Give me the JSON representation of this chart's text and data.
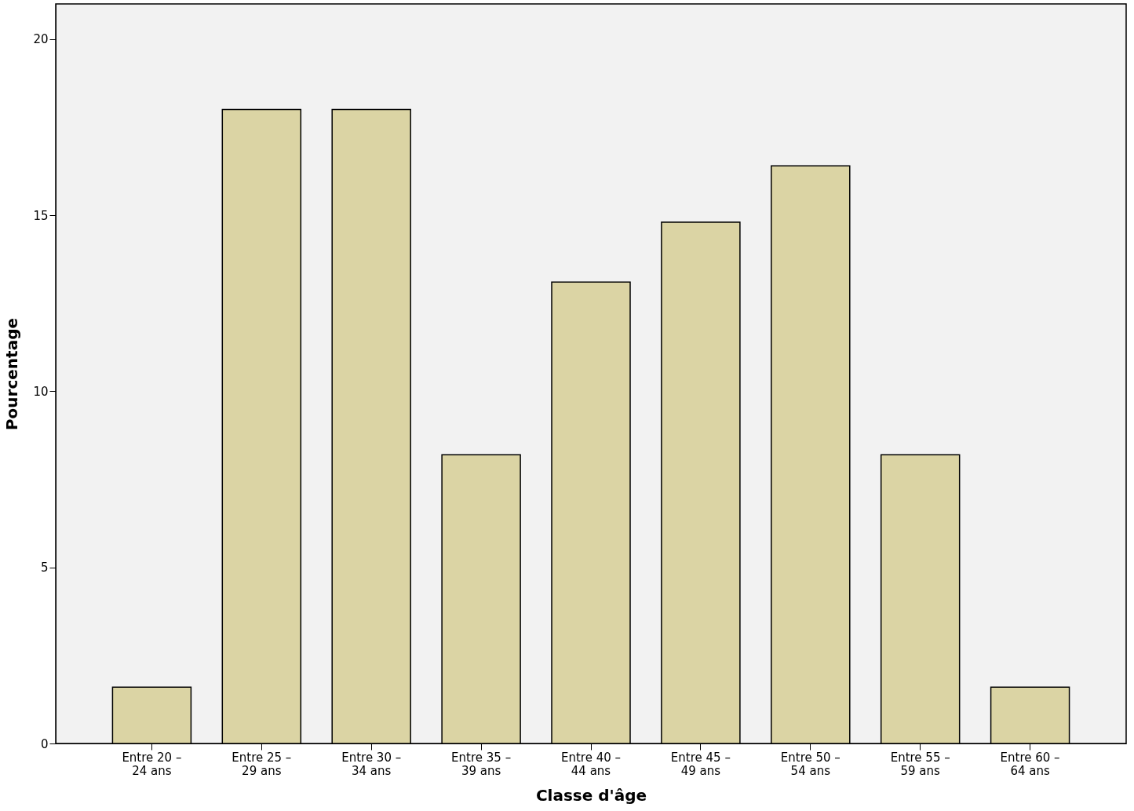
{
  "chart_data": {
    "type": "bar",
    "xlabel": "Classe d'âge",
    "ylabel": "Pourcentage",
    "categories": [
      "Entre 20 –\n24 ans",
      "Entre 25 –\n29 ans",
      "Entre 30 –\n34 ans",
      "Entre 35 –\n39 ans",
      "Entre 40 –\n44 ans",
      "Entre 45 –\n49 ans",
      "Entre 50 –\n54 ans",
      "Entre 55 –\n59 ans",
      "Entre 60 –\n64 ans"
    ],
    "values": [
      1.6,
      18.0,
      18.0,
      8.2,
      13.1,
      14.8,
      16.4,
      8.2,
      1.6
    ],
    "color": "#dbd4a4",
    "ylim": [
      0,
      21
    ],
    "yticks": [
      0,
      5,
      10,
      15,
      20
    ],
    "grid": false
  }
}
